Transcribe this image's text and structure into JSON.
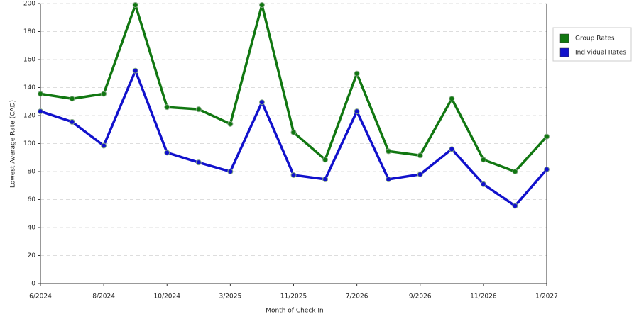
{
  "chart_data": {
    "type": "line",
    "x_label": "Month of Check In",
    "y_label": "Lowest Average Rate (CAD)",
    "categories": [
      "6/2024",
      null,
      "8/2024",
      null,
      "10/2024",
      null,
      "3/2025",
      null,
      "11/2025",
      null,
      "7/2026",
      null,
      "9/2026",
      null,
      "11/2026",
      null,
      "1/2027"
    ],
    "series": [
      {
        "name": "Group Rates",
        "color": "#117711",
        "values": [
          135.5,
          132,
          135.5,
          199,
          126,
          124.5,
          114,
          199,
          108,
          88.5,
          150,
          94.5,
          91.5,
          132,
          88.5,
          80,
          105
        ]
      },
      {
        "name": "Individual Rates",
        "color": "#1111cc",
        "values": [
          123,
          115.5,
          98.5,
          152,
          93.5,
          86.5,
          80,
          129.5,
          77.5,
          74.5,
          123,
          74.5,
          78,
          96,
          71,
          55.5,
          81.5
        ]
      }
    ],
    "ylim": [
      0,
      200
    ],
    "yticks": [
      0,
      20,
      40,
      60,
      80,
      100,
      120,
      140,
      160,
      180,
      200
    ],
    "grid": true,
    "legend": "right"
  }
}
